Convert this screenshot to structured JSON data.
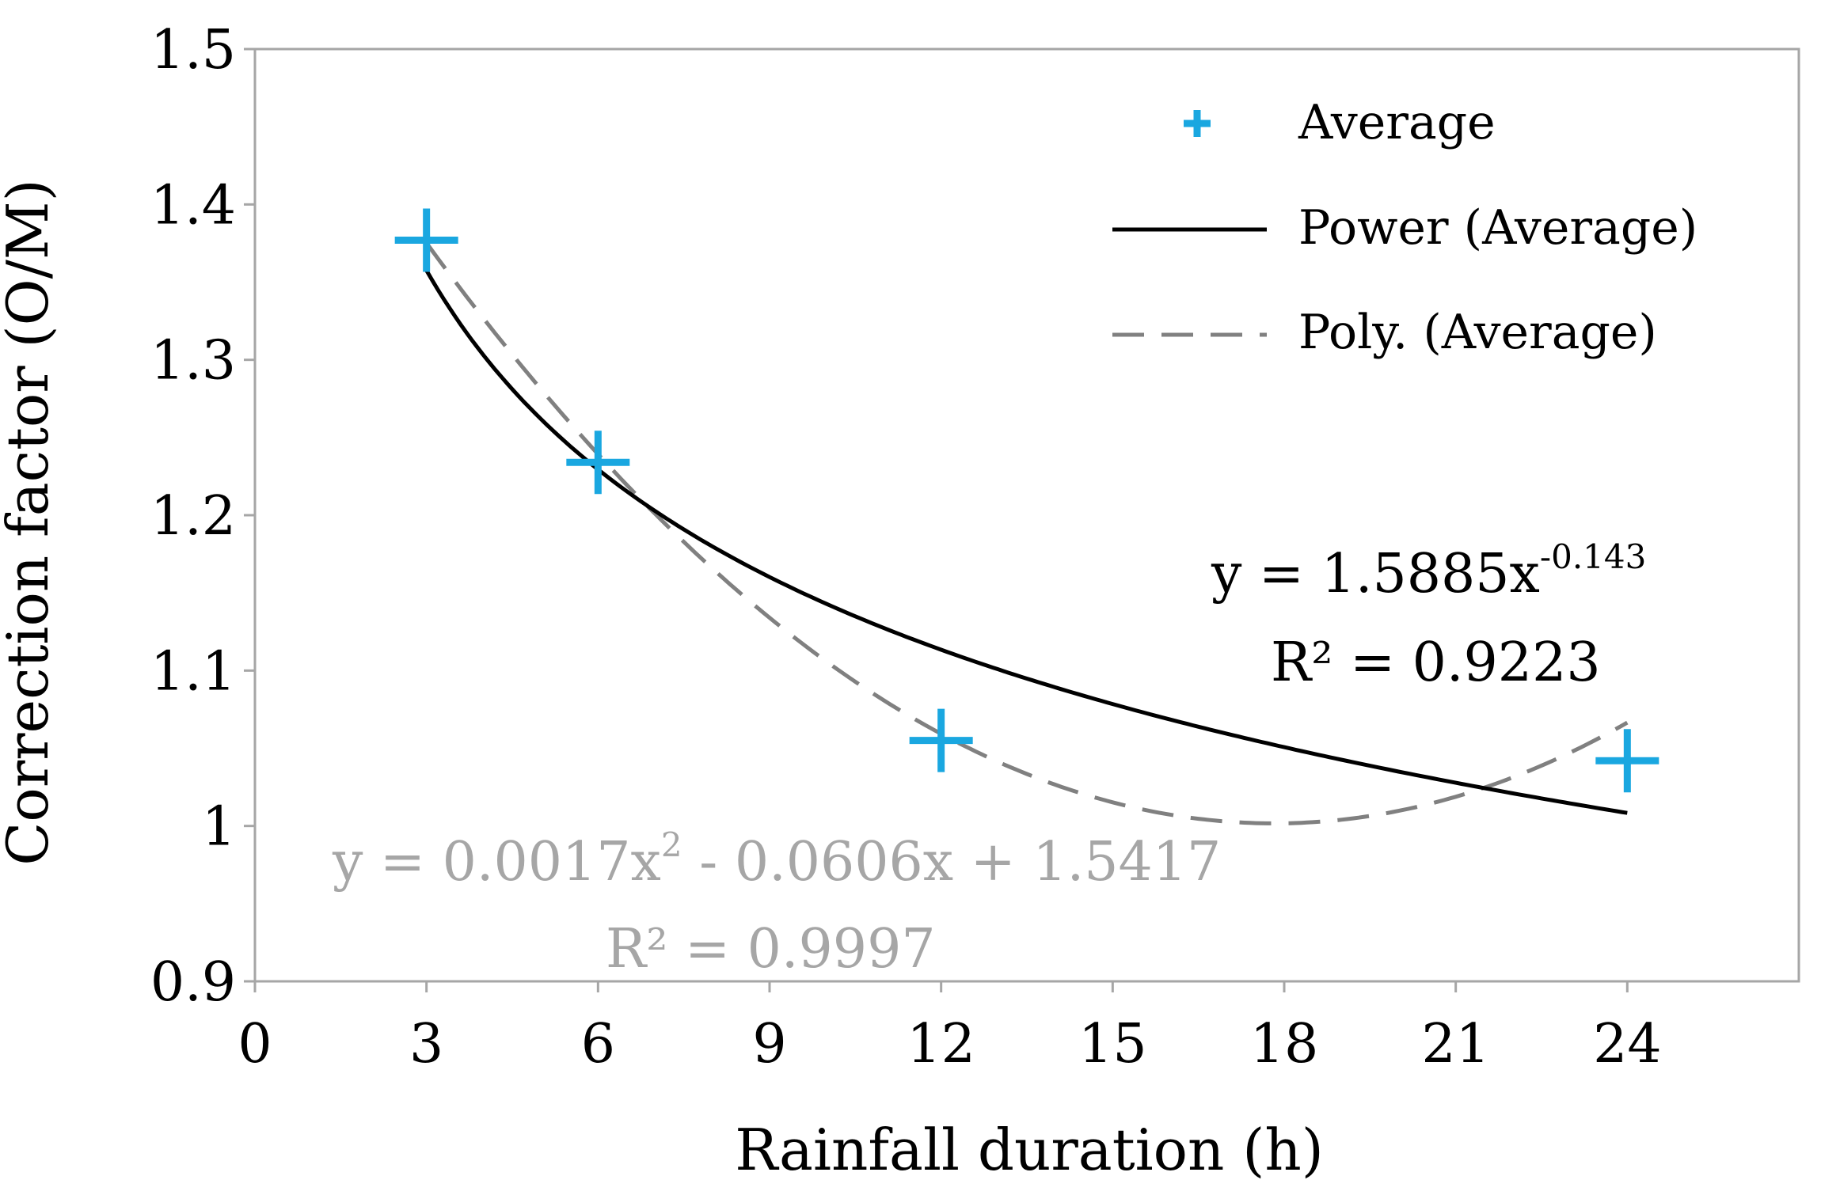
{
  "chart_data": {
    "type": "scatter",
    "xlabel": "Rainfall duration (h)",
    "ylabel": "Correction factor (O/M)",
    "xlim": [
      0,
      27
    ],
    "ylim": [
      0.9,
      1.5
    ],
    "xticks": [
      0,
      3,
      6,
      9,
      12,
      15,
      18,
      21,
      24
    ],
    "yticks": [
      0.9,
      1.0,
      1.1,
      1.2,
      1.3,
      1.4,
      1.5
    ],
    "xtick_labels": [
      "0",
      "3",
      "6",
      "9",
      "12",
      "15",
      "18",
      "21",
      "24"
    ],
    "ytick_labels": [
      "0.9",
      "1",
      "1.1",
      "1.2",
      "1.3",
      "1.4",
      "1.5"
    ],
    "grid": false,
    "legend_position": "top-right",
    "series": [
      {
        "name": "Average",
        "kind": "markers",
        "marker": "plus",
        "color": "#1aa7e0",
        "x": [
          3,
          6,
          12,
          24
        ],
        "y": [
          1.377,
          1.234,
          1.055,
          1.042
        ]
      },
      {
        "name": "Power (Average)",
        "kind": "trendline-power",
        "color": "#000000",
        "coef": 1.5885,
        "exponent": -0.143,
        "x_range": [
          3,
          24
        ]
      },
      {
        "name": "Poly. (Average)",
        "kind": "trendline-poly",
        "color": "#808080",
        "coefficients": [
          0.0017,
          -0.0606,
          1.5417
        ],
        "x_range": [
          3,
          24
        ]
      }
    ],
    "legend": [
      {
        "label": "Average"
      },
      {
        "label": "Power (Average)"
      },
      {
        "label": "Poly. (Average)"
      }
    ],
    "annotations": {
      "power_equation": {
        "prefix": "y = 1.5885x",
        "superscript": "-0.143",
        "r2": "R² = 0.9223"
      },
      "poly_equation": {
        "prefix": "y = 0.0017x",
        "superscript": "2",
        "suffix": " - 0.0606x + 1.5417",
        "r2": "R² = 0.9997"
      }
    }
  }
}
